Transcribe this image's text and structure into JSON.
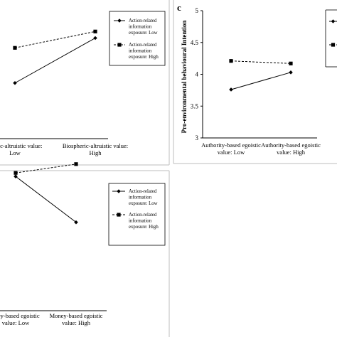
{
  "chart_data": [
    {
      "panel_id": "b",
      "panel_letter": "",
      "type": "line",
      "categories": [
        "Biospheric-altruistic value: Low",
        "Biospheric-altruistic value: High"
      ],
      "category_labels": [
        [
          "pheric-altruistic value:",
          "Low"
        ],
        [
          "Biospheric-altruistic value:",
          "High"
        ]
      ],
      "ylabel": "",
      "ylim": [
        3.0,
        5.0
      ],
      "yticks": [],
      "grid": false,
      "legend_position": "right",
      "series": [
        {
          "name": "Action-related information exposure: Low",
          "legend_lines": [
            "Action-related",
            "information",
            "exposure: Low"
          ],
          "marker": "diamond",
          "dash": "solid",
          "values": [
            3.75,
            4.3
          ]
        },
        {
          "name": "Action-related information exposure: High",
          "legend_lines": [
            "Action-related",
            "information",
            "exposure: High"
          ],
          "marker": "square",
          "dash": "dashed",
          "values": [
            4.18,
            4.38
          ]
        }
      ]
    },
    {
      "panel_id": "c",
      "panel_letter": "c",
      "type": "line",
      "categories": [
        "Authority-based egoistic value: Low",
        "Authority-based egoistic value: High"
      ],
      "category_labels": [
        [
          "Authority-based egoistic",
          "value: Low"
        ],
        [
          "Authority-based egoistic",
          "value: High"
        ]
      ],
      "ylabel": "Pro-environmental behavioural Intention",
      "ylim": [
        3.0,
        5.0
      ],
      "yticks": [
        "3",
        "3.5",
        "4",
        "4.5",
        "5"
      ],
      "grid": false,
      "legend_position": "right",
      "series": [
        {
          "name": "Action-related information exposure: Low",
          "marker": "diamond",
          "dash": "solid",
          "values": [
            3.76,
            4.03
          ]
        },
        {
          "name": "Action-related information exposure: High",
          "marker": "square",
          "dash": "dashed",
          "values": [
            4.21,
            4.17
          ]
        }
      ]
    },
    {
      "panel_id": "d",
      "panel_letter": "",
      "type": "line",
      "categories": [
        "Money-based egoistic value: Low",
        "Money-based egoistic value: High"
      ],
      "category_labels": [
        [
          "oney-based egoistic",
          "value: Low"
        ],
        [
          "Money-based egoistic",
          "value: High"
        ]
      ],
      "ylabel": "",
      "ylim": [
        3.0,
        5.0
      ],
      "yticks": [],
      "grid": false,
      "legend_position": "right",
      "series": [
        {
          "name": "Action-related information exposure: Low",
          "legend_lines": [
            "Action-related",
            "information",
            "exposure: Low"
          ],
          "marker": "diamond",
          "dash": "solid",
          "values": [
            4.08,
            3.82
          ]
        },
        {
          "name": "Action-related information exposure: High",
          "legend_lines": [
            "Action-related",
            "information",
            "exposure: High"
          ],
          "marker": "square",
          "dash": "dashed",
          "values": [
            4.1,
            4.15
          ]
        }
      ]
    }
  ]
}
